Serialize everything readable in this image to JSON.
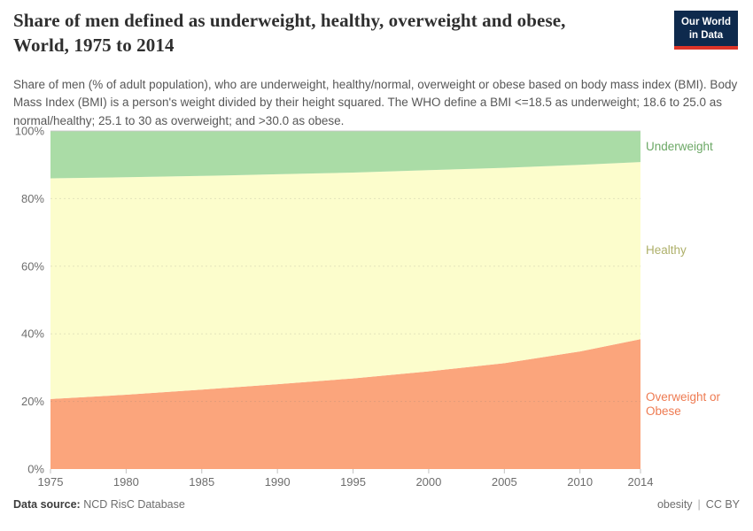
{
  "header": {
    "title_line1": "Share of men defined as underweight, healthy, overweight and obese,",
    "title_line2": "World, 1975 to 2014",
    "subtitle": "Share of men (% of adult population), who are underweight, healthy/normal, overweight or obese based on body mass index (BMI). Body Mass Index (BMI) is a person's weight divided by their height squared. The WHO define a BMI <=18.5 as underweight; 18.6 to 25.0 as normal/healthy; 25.1 to 30 as overweight; and >30.0 as obese.",
    "logo": {
      "line1": "Our World",
      "line2": "in Data",
      "bg": "#0e2a4d",
      "stripe": "#dc3428"
    }
  },
  "chart_data": {
    "type": "area",
    "stacked": true,
    "title": "Share of men defined as underweight, healthy, overweight and obese, World, 1975 to 2014",
    "x": [
      1975,
      1980,
      1985,
      1990,
      1995,
      2000,
      2005,
      2010,
      2014
    ],
    "x_tick_labels": [
      "1975",
      "1980",
      "1985",
      "1990",
      "1995",
      "2000",
      "2005",
      "2010",
      "2014"
    ],
    "series": [
      {
        "name": "Overweight or Obese",
        "color": "#fba57c",
        "label_color": "#ee7b52",
        "values": [
          20.7,
          22.0,
          23.5,
          25.1,
          26.8,
          28.9,
          31.3,
          34.8,
          38.4
        ]
      },
      {
        "name": "Healthy",
        "color": "#fcfdcc",
        "label_color": "#aeb06a",
        "values": [
          65.3,
          64.3,
          63.2,
          62.1,
          60.9,
          59.5,
          57.8,
          55.2,
          52.4
        ]
      },
      {
        "name": "Underweight",
        "color": "#aadca6",
        "label_color": "#6ca866",
        "values": [
          14.0,
          13.7,
          13.3,
          12.8,
          12.3,
          11.6,
          10.9,
          10.0,
          9.2
        ]
      }
    ],
    "ylim": [
      0,
      100
    ],
    "y_ticks": [
      0,
      20,
      40,
      60,
      80,
      100
    ],
    "y_tick_labels": [
      "0%",
      "20%",
      "40%",
      "60%",
      "80%",
      "100%"
    ],
    "grid": true,
    "legend_position": "right"
  },
  "footer": {
    "source_label": "Data source:",
    "source_value": "NCD RisC Database",
    "right_label": "obesity",
    "separator": "|",
    "license": "CC BY"
  }
}
